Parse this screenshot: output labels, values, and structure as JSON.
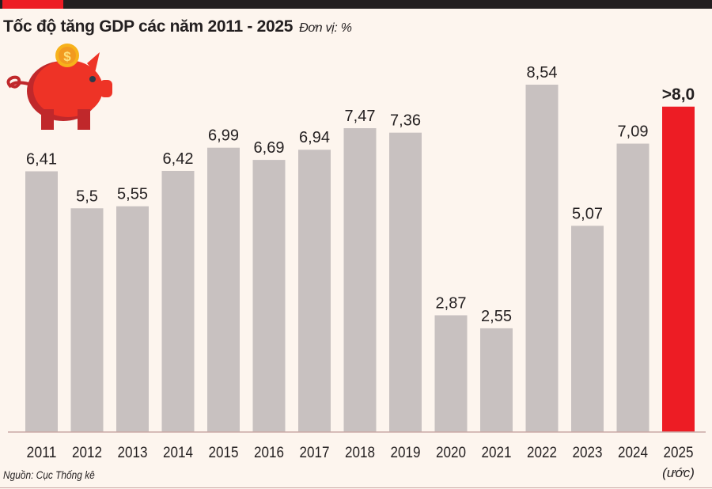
{
  "title": "Tốc độ tăng GDP các năm 2011 - 2025",
  "unit": "Đơn vị: %",
  "source": "Nguồn: Cục Thống kê",
  "colors": {
    "bar": "#c8c1c0",
    "highlight": "#ed1c24",
    "background": "#fdf5ee",
    "text": "#231f20"
  },
  "icon": "piggy-bank-coin-icon",
  "chart_data": {
    "type": "bar",
    "title": "Tốc độ tăng GDP các năm 2011 - 2025",
    "ylabel": "",
    "xlabel": "",
    "categories": [
      "2011",
      "2012",
      "2013",
      "2014",
      "2015",
      "2016",
      "2017",
      "2018",
      "2019",
      "2020",
      "2021",
      "2022",
      "2023",
      "2024",
      "2025"
    ],
    "category_note": {
      "2025": "(ước)"
    },
    "values": [
      6.41,
      5.5,
      5.55,
      6.42,
      6.99,
      6.69,
      6.94,
      7.47,
      7.36,
      2.87,
      2.55,
      8.54,
      5.07,
      7.09,
      8.0
    ],
    "labels": [
      "6,41",
      "5,5",
      "5,55",
      "6,42",
      "6,99",
      "6,69",
      "6,94",
      "7,47",
      "7,36",
      "2,87",
      "2,55",
      "8,54",
      "5,07",
      "7,09",
      ">8,0"
    ],
    "highlight_index": 14,
    "ylim": [
      0,
      8.54
    ],
    "grid": false,
    "legend": "none"
  }
}
